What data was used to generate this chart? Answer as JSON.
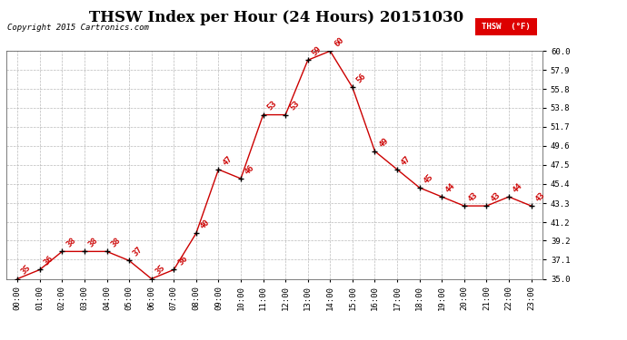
{
  "title": "THSW Index per Hour (24 Hours) 20151030",
  "copyright": "Copyright 2015 Cartronics.com",
  "legend_label": "THSW  (°F)",
  "hours": [
    "00:00",
    "01:00",
    "02:00",
    "03:00",
    "04:00",
    "05:00",
    "06:00",
    "07:00",
    "08:00",
    "09:00",
    "10:00",
    "11:00",
    "12:00",
    "13:00",
    "14:00",
    "15:00",
    "16:00",
    "17:00",
    "18:00",
    "19:00",
    "20:00",
    "21:00",
    "22:00",
    "23:00"
  ],
  "values": [
    35,
    36,
    38,
    38,
    38,
    37,
    35,
    36,
    40,
    47,
    46,
    53,
    53,
    59,
    60,
    56,
    49,
    47,
    45,
    44,
    43,
    43,
    44,
    43
  ],
  "line_color": "#cc0000",
  "marker_color": "#000000",
  "label_color": "#cc0000",
  "grid_color": "#aaaaaa",
  "bg_color": "#ffffff",
  "ylim": [
    35.0,
    60.0
  ],
  "yticks": [
    35.0,
    37.1,
    39.2,
    41.2,
    43.3,
    45.4,
    47.5,
    49.6,
    51.7,
    53.8,
    55.8,
    57.9,
    60.0
  ],
  "title_fontsize": 12,
  "label_fontsize": 6.5,
  "tick_fontsize": 6.5,
  "copyright_fontsize": 6.5
}
